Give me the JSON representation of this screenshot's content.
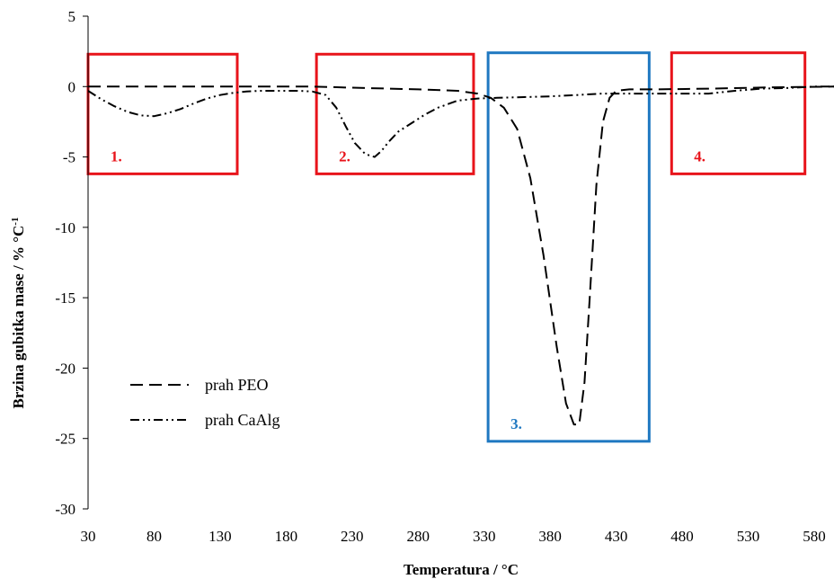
{
  "chart_data": {
    "type": "line",
    "xlabel": "Temperatura / °C",
    "ylabel_main": "Brzina gubitka mase / % °C",
    "ylabel_sup": "-1",
    "xlim": [
      30,
      595
    ],
    "ylim": [
      -30,
      5
    ],
    "xticks": [
      30,
      80,
      130,
      180,
      230,
      280,
      330,
      380,
      430,
      480,
      530,
      580
    ],
    "yticks": [
      5,
      0,
      -5,
      -10,
      -15,
      -20,
      -25,
      -30
    ],
    "grid": false,
    "legend_position": "lower-left",
    "series": [
      {
        "name": "prah PEO",
        "style": "dashed",
        "x": [
          30,
          50,
          70,
          90,
          110,
          130,
          160,
          200,
          240,
          280,
          310,
          325,
          335,
          345,
          355,
          365,
          375,
          385,
          392,
          398,
          402,
          406,
          410,
          415,
          420,
          425,
          430,
          440,
          460,
          500,
          550,
          595
        ],
        "y": [
          0,
          0,
          0,
          0,
          0,
          0,
          0,
          0,
          -0.1,
          -0.2,
          -0.3,
          -0.5,
          -0.8,
          -1.5,
          -3,
          -6.5,
          -12,
          -18.5,
          -22.5,
          -24,
          -24,
          -21,
          -15,
          -7,
          -2.5,
          -0.8,
          -0.3,
          -0.2,
          -0.2,
          -0.15,
          -0.05,
          0
        ]
      },
      {
        "name": "prah CaAlg",
        "style": "dash-dot-dot",
        "x": [
          30,
          40,
          50,
          60,
          70,
          80,
          90,
          100,
          110,
          120,
          130,
          140,
          150,
          160,
          170,
          180,
          190,
          200,
          210,
          218,
          225,
          232,
          240,
          247,
          252,
          258,
          265,
          275,
          285,
          295,
          310,
          325,
          340,
          360,
          380,
          400,
          420,
          440,
          460,
          480,
          500,
          520,
          540,
          560,
          580,
          595
        ],
        "y": [
          -0.3,
          -0.9,
          -1.4,
          -1.8,
          -2.05,
          -2.1,
          -1.9,
          -1.6,
          -1.2,
          -0.85,
          -0.6,
          -0.45,
          -0.35,
          -0.3,
          -0.3,
          -0.3,
          -0.3,
          -0.35,
          -0.6,
          -1.5,
          -2.8,
          -4.0,
          -4.8,
          -5.0,
          -4.6,
          -3.9,
          -3.2,
          -2.6,
          -2.0,
          -1.5,
          -1.0,
          -0.85,
          -0.8,
          -0.75,
          -0.7,
          -0.6,
          -0.5,
          -0.5,
          -0.5,
          -0.5,
          -0.5,
          -0.3,
          -0.15,
          -0.1,
          0,
          0
        ]
      }
    ],
    "regions": [
      {
        "label": "1.",
        "x_range": [
          30,
          143
        ],
        "y_range": [
          -6.2,
          2.3
        ],
        "color": "#e8141b"
      },
      {
        "label": "2.",
        "x_range": [
          203,
          322
        ],
        "y_range": [
          -6.2,
          2.3
        ],
        "color": "#e8141b"
      },
      {
        "label": "3.",
        "x_range": [
          333,
          455
        ],
        "y_range": [
          -25.2,
          2.4
        ],
        "color": "#1f78c1"
      },
      {
        "label": "4.",
        "x_range": [
          472,
          573
        ],
        "y_range": [
          -6.2,
          2.4
        ],
        "color": "#e8141b"
      }
    ]
  }
}
